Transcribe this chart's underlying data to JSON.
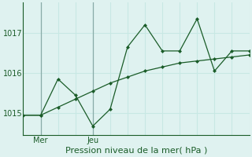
{
  "title": "Pression niveau de la mer( hPa )",
  "bg_color": "#dff2f0",
  "grid_color": "#c8e8e4",
  "line_color": "#1a5c28",
  "series1_x": [
    0,
    1,
    2,
    3,
    4,
    5,
    6,
    7,
    8,
    9,
    10,
    11,
    12,
    13
  ],
  "series1_y": [
    1014.95,
    1014.95,
    1015.15,
    1015.35,
    1015.55,
    1015.75,
    1015.9,
    1016.05,
    1016.15,
    1016.25,
    1016.3,
    1016.35,
    1016.4,
    1016.45
  ],
  "series2_x": [
    0,
    1,
    2,
    3,
    4,
    5,
    6,
    7,
    8,
    9,
    10,
    11,
    12,
    13
  ],
  "series2_y": [
    1014.95,
    1014.95,
    1015.85,
    1015.45,
    1014.68,
    1015.1,
    1016.65,
    1017.2,
    1016.55,
    1016.55,
    1017.35,
    1016.05,
    1016.55,
    1016.55
  ],
  "ytick_positions": [
    1015,
    1016,
    1017
  ],
  "ytick_labels": [
    "1015",
    "1016",
    "1017"
  ],
  "ylim": [
    1014.45,
    1017.75
  ],
  "xlim": [
    0,
    13
  ],
  "vline_mer": 1,
  "vline_jeu": 4,
  "xlabel_fontsize": 8,
  "tick_fontsize": 7,
  "n_vgrid": 14
}
